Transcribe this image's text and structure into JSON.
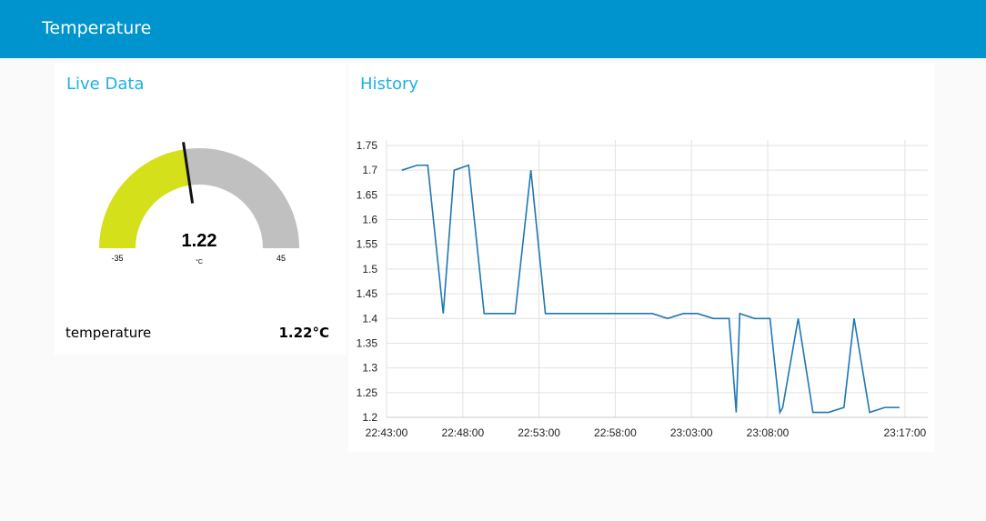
{
  "header": {
    "title": "Temperature"
  },
  "live_data": {
    "title": "Live Data",
    "gauge": {
      "value": 1.22,
      "unit": "°C",
      "min": -35,
      "max": 45,
      "color": "#d4e01a",
      "track_color": "#c0c0c0"
    },
    "text": {
      "label": "temperature",
      "value": "1.22°C"
    }
  },
  "chart_data": {
    "type": "line",
    "title": "History",
    "x": [
      "22:44:00",
      "22:45:00",
      "22:45:42",
      "22:46:43",
      "22:47:26",
      "22:48:23",
      "22:49:24",
      "22:51:26",
      "22:52:28",
      "22:53:25",
      "23:00:26",
      "23:01:26",
      "23:02:28",
      "23:03:24",
      "23:04:26",
      "23:05:28",
      "23:05:56",
      "23:06:10",
      "23:07:08",
      "23:08:09",
      "23:08:48",
      "23:08:59",
      "23:10:00",
      "23:10:58",
      "23:11:59",
      "23:13:00",
      "23:13:40",
      "23:14:41",
      "23:15:41",
      "23:16:39"
    ],
    "values": [
      1.7,
      1.71,
      1.71,
      1.41,
      1.7,
      1.71,
      1.41,
      1.41,
      1.7,
      1.41,
      1.41,
      1.4,
      1.41,
      1.41,
      1.4,
      1.4,
      1.21,
      1.41,
      1.4,
      1.4,
      1.21,
      1.22,
      1.4,
      1.21,
      1.21,
      1.22,
      1.4,
      1.21,
      1.22,
      1.22
    ],
    "color": "#1f77b4",
    "xlim": [
      "22:43:00",
      "23:18:30"
    ],
    "xticks": [
      "22:43:00",
      "22:48:00",
      "22:53:00",
      "22:58:00",
      "23:03:00",
      "23:08:00",
      "23:17:00"
    ],
    "ylim": [
      1.2,
      1.75
    ],
    "yticks": [
      1.2,
      1.25,
      1.3,
      1.35,
      1.4,
      1.45,
      1.5,
      1.55,
      1.6,
      1.65,
      1.7,
      1.75
    ],
    "grid": true
  }
}
